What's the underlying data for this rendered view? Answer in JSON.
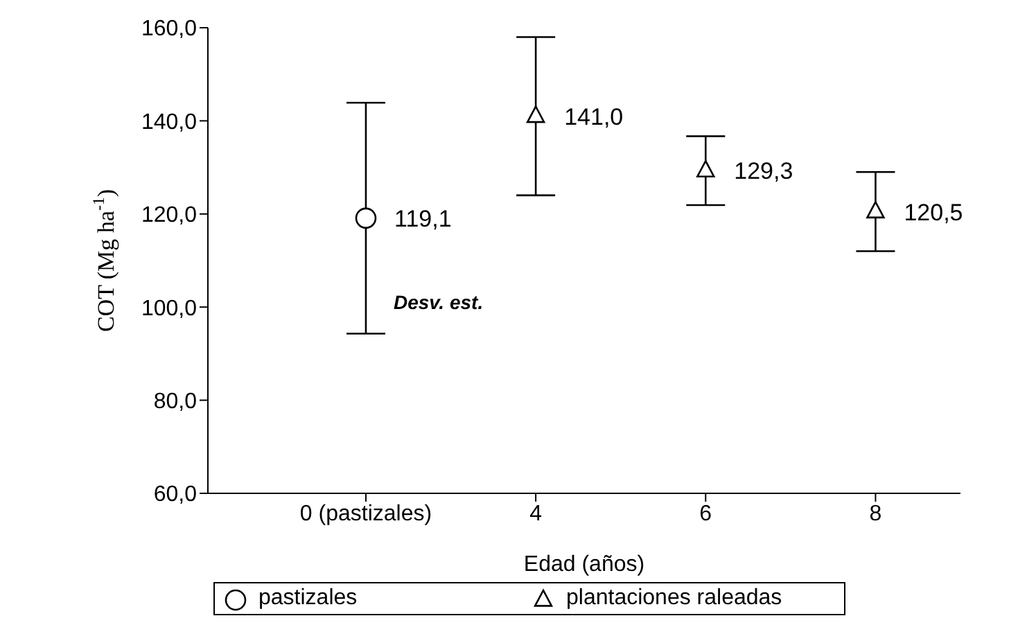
{
  "chart_data": {
    "type": "scatter",
    "xlabel": "Edad (años)",
    "ylabel": "COT (Mg ha$^{-1}$)",
    "categories": [
      "0 (pastizales)",
      "4",
      "6",
      "8"
    ],
    "ylim": [
      60,
      160
    ],
    "yticks": [
      {
        "value": 60,
        "label": "60,0"
      },
      {
        "value": 80,
        "label": "80,0"
      },
      {
        "value": 100,
        "label": "100,0"
      },
      {
        "value": 120,
        "label": "120,0"
      },
      {
        "value": 140,
        "label": "140,0"
      },
      {
        "value": 160,
        "label": "160,0"
      }
    ],
    "series": [
      {
        "name": "pastizales",
        "color": "#000000",
        "marker": "circle",
        "values": [
          119.1,
          null,
          null,
          null
        ],
        "errors": [
          24.8,
          null,
          null,
          null
        ],
        "value_labels": [
          "119,1",
          null,
          null,
          null
        ]
      },
      {
        "name": "plantaciones raleadas",
        "color": "#000000",
        "marker": "triangle",
        "values": [
          null,
          141.0,
          129.3,
          120.5
        ],
        "errors": [
          null,
          17,
          7.4,
          8.5
        ],
        "value_labels": [
          null,
          "141,0",
          "129,3",
          "120,5"
        ]
      }
    ],
    "annotations": [
      {
        "text": "Desv. est.",
        "x": "0 (pastizales)",
        "y": 101
      }
    ],
    "grid": false,
    "legend": "bottom"
  }
}
